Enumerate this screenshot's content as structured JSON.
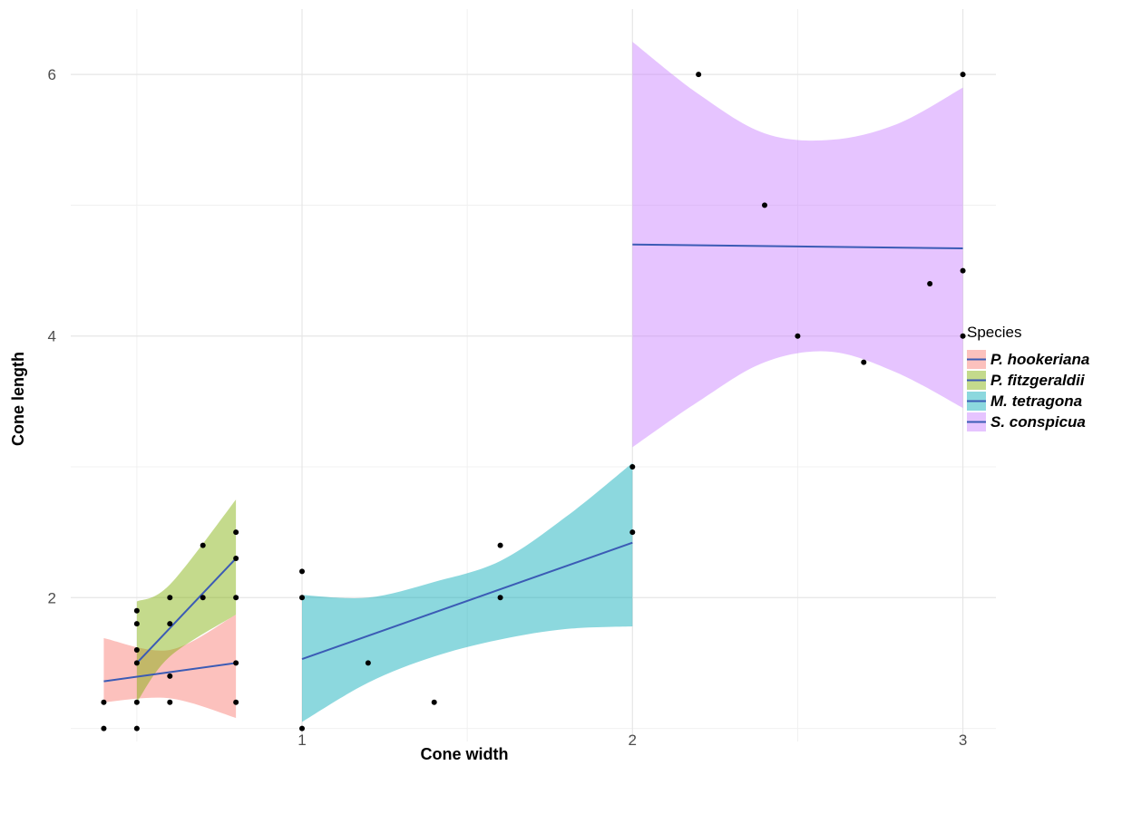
{
  "chart_data": {
    "type": "scatter",
    "title": "",
    "xlabel": "Cone width",
    "ylabel": "Cone length",
    "xlim": [
      0.3,
      3.1
    ],
    "ylim": [
      0.9,
      6.5
    ],
    "x_ticks": [
      1,
      2,
      3
    ],
    "x_tick_labels": [
      "1",
      "2",
      "3"
    ],
    "y_ticks": [
      2,
      4,
      6
    ],
    "y_tick_labels": [
      "2",
      "4",
      "6"
    ],
    "grid": true,
    "legend_title": "Species",
    "legend_position": "right",
    "fit_line_color": "#3b5bb5",
    "point_color": "#000000",
    "series": [
      {
        "name": "P. hookeriana",
        "ribbon_color": "#f8766d",
        "points": [
          [
            0.4,
            1.0
          ],
          [
            0.4,
            1.2
          ],
          [
            0.5,
            1.0
          ],
          [
            0.5,
            1.2
          ],
          [
            0.5,
            1.5
          ],
          [
            0.5,
            1.6
          ],
          [
            0.6,
            1.2
          ],
          [
            0.6,
            1.4
          ],
          [
            0.8,
            1.2
          ],
          [
            0.8,
            1.5
          ]
        ],
        "fit": {
          "x": [
            0.4,
            0.8
          ],
          "y": [
            1.36,
            1.5
          ]
        },
        "band": {
          "x": [
            0.4,
            0.6,
            0.8
          ],
          "lower": [
            1.2,
            1.23,
            1.08
          ],
          "upper": [
            1.69,
            1.6,
            1.87
          ]
        }
      },
      {
        "name": "P. fitzgeraldii",
        "ribbon_color": "#7cae00",
        "points": [
          [
            0.5,
            1.8
          ],
          [
            0.5,
            1.9
          ],
          [
            0.6,
            1.8
          ],
          [
            0.6,
            2.0
          ],
          [
            0.7,
            2.0
          ],
          [
            0.7,
            2.4
          ],
          [
            0.8,
            2.0
          ],
          [
            0.8,
            2.3
          ],
          [
            0.8,
            2.5
          ]
        ],
        "fit": {
          "x": [
            0.5,
            0.8
          ],
          "y": [
            1.5,
            2.3
          ]
        },
        "band": {
          "x": [
            0.5,
            0.6,
            0.8
          ],
          "lower": [
            1.2,
            1.55,
            1.87
          ],
          "upper": [
            1.97,
            2.1,
            2.75
          ]
        }
      },
      {
        "name": "M. tetragona",
        "ribbon_color": "#00a9b5",
        "points": [
          [
            1.0,
            1.0
          ],
          [
            1.0,
            2.0
          ],
          [
            1.0,
            2.2
          ],
          [
            1.2,
            1.5
          ],
          [
            1.4,
            1.2
          ],
          [
            1.6,
            2.0
          ],
          [
            1.6,
            2.4
          ],
          [
            2.0,
            2.5
          ],
          [
            2.0,
            3.0
          ]
        ],
        "fit": {
          "x": [
            1.0,
            2.0
          ],
          "y": [
            1.53,
            2.42
          ]
        },
        "band": {
          "x": [
            1.0,
            1.2,
            1.4,
            1.6,
            1.8,
            2.0
          ],
          "lower": [
            1.05,
            1.35,
            1.55,
            1.68,
            1.76,
            1.78
          ],
          "upper": [
            2.02,
            2.0,
            2.12,
            2.28,
            2.62,
            3.03
          ]
        }
      },
      {
        "name": "S. conspicua",
        "ribbon_color": "#c77cff",
        "points": [
          [
            2.2,
            6.0
          ],
          [
            2.4,
            5.0
          ],
          [
            2.5,
            4.0
          ],
          [
            2.7,
            3.8
          ],
          [
            2.9,
            4.4
          ],
          [
            3.0,
            4.0
          ],
          [
            3.0,
            4.5
          ],
          [
            3.0,
            6.0
          ]
        ],
        "fit": {
          "x": [
            2.0,
            3.0
          ],
          "y": [
            4.7,
            4.67
          ]
        },
        "band": {
          "x": [
            2.0,
            2.2,
            2.4,
            2.6,
            2.8,
            3.0
          ],
          "lower": [
            3.15,
            3.5,
            3.8,
            3.88,
            3.72,
            3.45
          ],
          "upper": [
            6.25,
            5.85,
            5.55,
            5.5,
            5.62,
            5.9
          ]
        }
      }
    ]
  }
}
